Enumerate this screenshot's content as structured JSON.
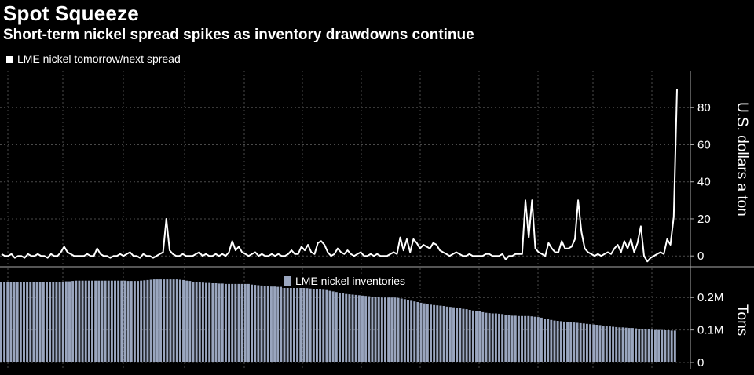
{
  "title": "Spot Squeeze",
  "subtitle": "Short-term nickel spread spikes as inventory drawdowns continue",
  "chart_data": [
    {
      "type": "line",
      "legend": "LME nickel tomorrow/next spread",
      "ylabel": "U.S. dollars a ton",
      "ylim": [
        -5,
        100
      ],
      "yticks": [
        0,
        20,
        40,
        60,
        80
      ],
      "ytick_labels": [
        "0",
        "20",
        "40",
        "60",
        "80"
      ],
      "grid": true,
      "series": [
        {
          "name": "LME nickel tomorrow/next spread",
          "color": "#ffffff",
          "values": [
            1,
            0,
            0,
            1,
            -1,
            0,
            0,
            -1,
            1,
            0,
            0,
            1,
            0,
            0,
            -1,
            1,
            0,
            0,
            2,
            5,
            2,
            1,
            0,
            0,
            0,
            0,
            1,
            0,
            0,
            4,
            1,
            0,
            0,
            -1,
            0,
            0,
            1,
            0,
            1,
            2,
            0,
            0,
            -1,
            1,
            0,
            0,
            -1,
            0,
            1,
            2,
            20,
            3,
            1,
            0,
            0,
            1,
            0,
            0,
            0,
            1,
            2,
            0,
            1,
            0,
            0,
            1,
            0,
            1,
            0,
            2,
            8,
            3,
            5,
            2,
            1,
            0,
            1,
            2,
            0,
            1,
            0,
            0,
            1,
            0,
            1,
            0,
            0,
            1,
            3,
            1,
            1,
            5,
            3,
            6,
            2,
            1,
            7,
            8,
            6,
            2,
            0,
            1,
            4,
            2,
            1,
            3,
            1,
            0,
            1,
            2,
            0,
            0,
            1,
            0,
            1,
            0,
            0,
            0,
            1,
            2,
            1,
            10,
            3,
            9,
            2,
            9,
            7,
            4,
            6,
            5,
            4,
            7,
            6,
            3,
            2,
            1,
            0,
            1,
            2,
            1,
            0,
            0,
            1,
            0,
            0,
            0,
            0,
            1,
            1,
            0,
            0,
            0,
            1,
            -2,
            0,
            0,
            1,
            1,
            1,
            30,
            10,
            30,
            4,
            2,
            1,
            0,
            7,
            4,
            2,
            2,
            8,
            4,
            4,
            5,
            9,
            30,
            13,
            4,
            2,
            1,
            0,
            1,
            0,
            1,
            2,
            1,
            4,
            6,
            2,
            8,
            4,
            9,
            2,
            7,
            16,
            0,
            -3,
            -1,
            0,
            1,
            2,
            1,
            9,
            6,
            21,
            90
          ]
        }
      ]
    },
    {
      "type": "bar",
      "legend": "LME nickel inventories",
      "ylabel": "Tons",
      "ylim": [
        0,
        0.29
      ],
      "yticks": [
        0,
        0.1,
        0.2
      ],
      "ytick_labels": [
        "0",
        "0.1M",
        "0.2M"
      ],
      "grid": true,
      "series": [
        {
          "name": "LME nickel inventories",
          "unit": "M tons",
          "color": "#9aa6bf",
          "values": [
            0.247,
            0.247,
            0.247,
            0.247,
            0.247,
            0.247,
            0.247,
            0.247,
            0.247,
            0.247,
            0.247,
            0.247,
            0.247,
            0.247,
            0.247,
            0.247,
            0.247,
            0.248,
            0.249,
            0.249,
            0.25,
            0.25,
            0.251,
            0.252,
            0.252,
            0.252,
            0.252,
            0.252,
            0.252,
            0.252,
            0.252,
            0.252,
            0.252,
            0.252,
            0.252,
            0.252,
            0.252,
            0.252,
            0.252,
            0.251,
            0.251,
            0.251,
            0.251,
            0.252,
            0.253,
            0.254,
            0.255,
            0.256,
            0.256,
            0.256,
            0.256,
            0.256,
            0.256,
            0.256,
            0.256,
            0.255,
            0.254,
            0.252,
            0.251,
            0.249,
            0.248,
            0.247,
            0.246,
            0.245,
            0.245,
            0.244,
            0.244,
            0.243,
            0.243,
            0.242,
            0.242,
            0.242,
            0.242,
            0.242,
            0.242,
            0.242,
            0.242,
            0.24,
            0.239,
            0.238,
            0.237,
            0.236,
            0.235,
            0.234,
            0.234,
            0.233,
            0.233,
            0.233,
            0.233,
            0.233,
            0.233,
            0.232,
            0.231,
            0.23,
            0.229,
            0.228,
            0.227,
            0.226,
            0.225,
            0.224,
            0.223,
            0.221,
            0.219,
            0.217,
            0.215,
            0.213,
            0.211,
            0.21,
            0.209,
            0.208,
            0.207,
            0.206,
            0.205,
            0.204,
            0.203,
            0.202,
            0.201,
            0.2,
            0.2,
            0.2,
            0.2,
            0.2,
            0.199,
            0.197,
            0.195,
            0.193,
            0.19,
            0.188,
            0.186,
            0.184,
            0.182,
            0.18,
            0.178,
            0.177,
            0.176,
            0.175,
            0.174,
            0.172,
            0.171,
            0.17,
            0.169,
            0.167,
            0.165,
            0.164,
            0.162,
            0.16,
            0.159,
            0.157,
            0.155,
            0.153,
            0.152,
            0.151,
            0.151,
            0.15,
            0.149,
            0.147,
            0.145,
            0.144,
            0.144,
            0.143,
            0.143,
            0.143,
            0.143,
            0.142,
            0.141,
            0.14,
            0.138,
            0.135,
            0.133,
            0.131,
            0.129,
            0.128,
            0.127,
            0.126,
            0.125,
            0.124,
            0.123,
            0.122,
            0.121,
            0.12,
            0.119,
            0.118,
            0.117,
            0.116,
            0.115,
            0.113,
            0.112,
            0.111,
            0.11,
            0.109,
            0.108,
            0.108,
            0.107,
            0.106,
            0.106,
            0.105,
            0.104,
            0.104,
            0.103,
            0.102,
            0.101,
            0.1,
            0.1,
            0.1,
            0.099,
            0.099,
            0.098,
            0.098
          ]
        }
      ]
    }
  ]
}
